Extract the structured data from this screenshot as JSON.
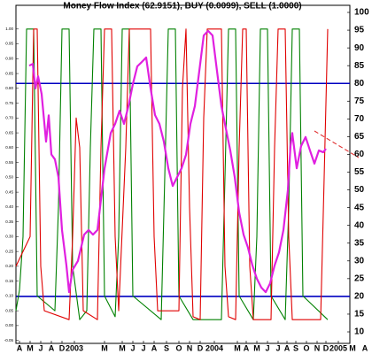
{
  "chart_data": {
    "type": "line",
    "title": "Money Flow Index (62.9151), BUY (0.0099), SELL (1.0000)",
    "xlim": [
      0,
      100
    ],
    "xticks": [
      {
        "value": 1,
        "label": "A"
      },
      {
        "value": 4,
        "label": "M"
      },
      {
        "value": 7,
        "label": "J"
      },
      {
        "value": 10,
        "label": "A"
      },
      {
        "value": 13,
        "label": "D"
      },
      {
        "value": 16.5,
        "label": "2003"
      },
      {
        "value": 25,
        "label": "M"
      },
      {
        "value": 30,
        "label": "M"
      },
      {
        "value": 33,
        "label": "J"
      },
      {
        "value": 36,
        "label": "J"
      },
      {
        "value": 39,
        "label": "A"
      },
      {
        "value": 42.5,
        "label": "S"
      },
      {
        "value": 46,
        "label": "O"
      },
      {
        "value": 49,
        "label": "N"
      },
      {
        "value": 52,
        "label": "D"
      },
      {
        "value": 56,
        "label": "2004"
      },
      {
        "value": 62.5,
        "label": "M"
      },
      {
        "value": 65,
        "label": "A"
      },
      {
        "value": 68,
        "label": "M"
      },
      {
        "value": 71,
        "label": "J"
      },
      {
        "value": 74,
        "label": "J"
      },
      {
        "value": 76.5,
        "label": "A"
      },
      {
        "value": 79,
        "label": "S"
      },
      {
        "value": 82,
        "label": "O"
      },
      {
        "value": 85,
        "label": "N"
      },
      {
        "value": 87.5,
        "label": "D"
      },
      {
        "value": 91,
        "label": "2005"
      },
      {
        "value": 95,
        "label": "M"
      },
      {
        "value": 98.5,
        "label": "A"
      }
    ],
    "ylim": [
      -0.06,
      1.08
    ],
    "yticks": [
      {
        "value": 1,
        "label": "1.00"
      },
      0.95,
      {
        "value": 0.9,
        "label": "0.90"
      },
      0.85,
      {
        "value": 0.8,
        "label": "0.80"
      },
      0.75,
      {
        "value": 0.7,
        "label": "0.70"
      },
      0.65,
      {
        "value": 0.6,
        "label": "0.60"
      },
      0.55,
      {
        "value": 0.5,
        "label": "0.50"
      },
      0.45,
      {
        "value": 0.4,
        "label": "0.40"
      },
      0.35,
      {
        "value": 0.3,
        "label": "0.30"
      },
      0.25,
      {
        "value": 0.2,
        "label": "0.20"
      },
      0.15,
      {
        "value": 0.1,
        "label": "0.10"
      },
      0.05,
      {
        "value": 0,
        "label": "0.00"
      },
      -0.05
    ],
    "y2lim": [
      6.76,
      102
    ],
    "y2ticks": [
      100,
      95,
      90,
      85,
      80,
      75,
      70,
      65,
      60,
      55,
      50,
      45,
      40,
      35,
      30,
      25,
      20,
      15,
      10
    ],
    "hlines": [
      {
        "value": 80,
        "axis": "y2",
        "color": "#0000c0"
      },
      {
        "value": 20,
        "axis": "y2",
        "color": "#0000c0"
      }
    ],
    "series": [
      {
        "color": "#008000",
        "axis": "y",
        "x": [
          0,
          1,
          2,
          3,
          5,
          6,
          11,
          12,
          13,
          15,
          16,
          18,
          20,
          21,
          22,
          24,
          25,
          28,
          29,
          30,
          32,
          33,
          41,
          42,
          43,
          45,
          46,
          50,
          58,
          59,
          60,
          62,
          63,
          67,
          68,
          69,
          71,
          72,
          76,
          77,
          78,
          80,
          81,
          88
        ],
        "values": [
          0.05,
          0.12,
          0.3,
          1,
          1,
          0.1,
          0.05,
          0.4,
          1,
          1,
          0.2,
          0.02,
          0.05,
          0.6,
          1,
          1,
          0.1,
          0.03,
          0.3,
          1,
          1,
          0.1,
          0.02,
          0.5,
          1,
          1,
          0.1,
          0.02,
          0.02,
          0.5,
          1,
          1,
          0.1,
          0.02,
          0.3,
          1,
          1,
          0.1,
          0.02,
          0.4,
          1,
          1,
          0.1,
          0.02
        ]
      },
      {
        "color": "#e00000",
        "axis": "y",
        "x": [
          0,
          4,
          5,
          6,
          7,
          8,
          15,
          16,
          17,
          18,
          19,
          23,
          24,
          25,
          27,
          28,
          29,
          31,
          32,
          38,
          39,
          40,
          46,
          47,
          48,
          49,
          50,
          52,
          53,
          54,
          58,
          59,
          60,
          62,
          63,
          64,
          65,
          66,
          67,
          72,
          73,
          74,
          76,
          77,
          78,
          86,
          87,
          88
        ],
        "values": [
          0.2,
          0.3,
          1,
          1,
          0.2,
          0.05,
          0.02,
          0.3,
          0.7,
          0.6,
          0.05,
          0.02,
          0.6,
          1,
          1,
          0.3,
          0.05,
          0.6,
          1,
          1,
          0.3,
          0.05,
          0.05,
          0.8,
          1,
          0.4,
          0.03,
          0.02,
          0.7,
          1,
          1,
          0.2,
          0.03,
          0.02,
          0.6,
          1,
          1,
          0.2,
          0.02,
          0.02,
          0.6,
          1,
          1,
          0.3,
          0.02,
          0.02,
          0.5,
          1
        ]
      },
      {
        "color": "#e020e0",
        "axis": "y2",
        "width": 2.2,
        "x": [
          3.75,
          4.75,
          5.5,
          6.25,
          7.25,
          8.5,
          9.25,
          10,
          11,
          12,
          13,
          14.25,
          15,
          16,
          17.5,
          19.25,
          20.5,
          21.75,
          23,
          25,
          26.75,
          28,
          29.25,
          30.5,
          31.75,
          33,
          34.25,
          35.5,
          36.75,
          38,
          39.25,
          40.5,
          41.75,
          43,
          44.25,
          45.5,
          46.75,
          48,
          49.25,
          50.5,
          51.75,
          53,
          54.25,
          55.5,
          56.75,
          58,
          59.25,
          60.5,
          61.75,
          63,
          64.25,
          65.5,
          66.75,
          68,
          69.25,
          70.5,
          71.75,
          73,
          74.25,
          75.5,
          76.75,
          77.5,
          78,
          79.25,
          80.5,
          81.75,
          83,
          84.25,
          85.5,
          86.75,
          87.5
        ],
        "values": [
          85,
          85.5,
          78.6,
          82,
          77,
          63.6,
          71,
          60,
          58.6,
          53.6,
          38.7,
          28.7,
          21.2,
          27.5,
          30,
          37.4,
          38.7,
          37.4,
          38.7,
          56,
          66,
          68.6,
          72.3,
          68.6,
          73.6,
          79.8,
          84.8,
          86,
          87.3,
          78.6,
          71.1,
          68.6,
          63.6,
          56.1,
          51.1,
          53.6,
          56.1,
          59.9,
          68.6,
          73.6,
          83.5,
          93.5,
          94.8,
          93.5,
          83.5,
          73.6,
          67.3,
          61.1,
          53.6,
          43.7,
          37.4,
          33.7,
          28.7,
          25,
          22.5,
          21.2,
          23.7,
          28.7,
          32.4,
          38.7,
          49.9,
          62.4,
          66,
          56.1,
          62.4,
          64.9,
          61.1,
          57.4,
          61.1,
          60.6,
          61.6
        ]
      },
      {
        "color": "#e03030",
        "axis": "y2",
        "dash": true,
        "x": [
          84.25,
          96.75
        ],
        "values": [
          66.6,
          59.1
        ]
      }
    ]
  }
}
